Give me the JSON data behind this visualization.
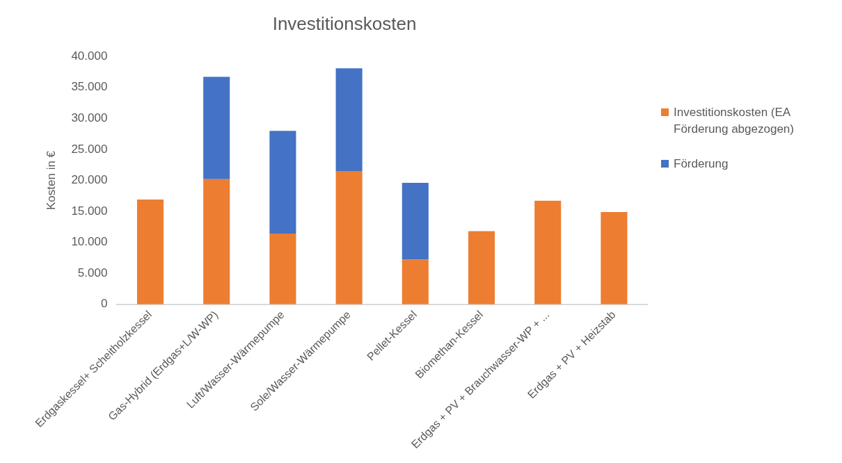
{
  "chart_data": {
    "type": "bar",
    "title": "Investitionskosten",
    "ylabel": "Kosten in €",
    "categories": [
      "Erdgaskessel+ Scheitholzkessel",
      "Gas-Hybrid (Erdgas+L/W-WP)",
      "Luft/Wasser-Wärmepumpe",
      "Sole/Wasser-Wärmepumpe",
      "Pellet-Kessel",
      "Biomethan-Kessel",
      "Erdgas + PV + Brauchwasser-WP + ...",
      "Erdgas + PV + Heizstab"
    ],
    "series": [
      {
        "name": "Investitionskosten (EA Förderung abgezogen)",
        "color": "#ed7d31",
        "values": [
          16900,
          20200,
          11400,
          21500,
          7200,
          11800,
          16700,
          14900
        ]
      },
      {
        "name": "Förderung",
        "color": "#4472c4",
        "values": [
          null,
          16500,
          16600,
          16600,
          12400,
          null,
          null,
          null
        ]
      }
    ],
    "stacked": true,
    "ylim": [
      0,
      40000
    ],
    "yticks": [
      0,
      {
        "value": 5000,
        "label": "5.000"
      },
      {
        "value": 10000,
        "label": "10.000"
      },
      {
        "value": 15000,
        "label": "15.000"
      },
      {
        "value": 20000,
        "label": "20.000"
      },
      {
        "value": 25000,
        "label": "25.000"
      },
      {
        "value": 30000,
        "label": "30.000"
      },
      {
        "value": 35000,
        "label": "35.000"
      },
      {
        "value": 40000,
        "label": "40.000"
      }
    ],
    "grid": false,
    "legend": "right"
  }
}
